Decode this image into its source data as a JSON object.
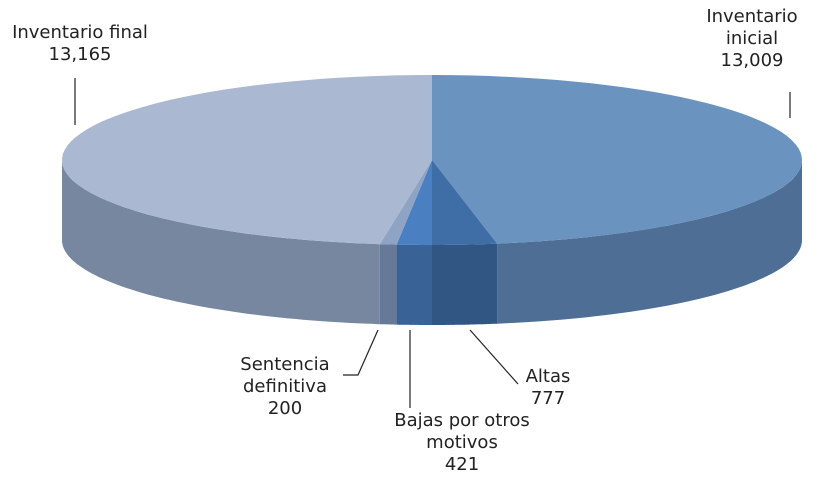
{
  "chart_data": {
    "type": "pie3d",
    "categories": [
      "Inventario inicial",
      "Altas",
      "Bajas por otros motivos",
      "Sentencia definitiva",
      "Inventario final"
    ],
    "values": [
      13009,
      777,
      421,
      200,
      13165
    ],
    "value_labels": [
      "13,009",
      "777",
      "421",
      "200",
      "13,165"
    ],
    "colors": [
      "#6b93c0",
      "#3f6ea6",
      "#4a80c2",
      "#8fa3c4",
      "#aab8d2"
    ]
  }
}
